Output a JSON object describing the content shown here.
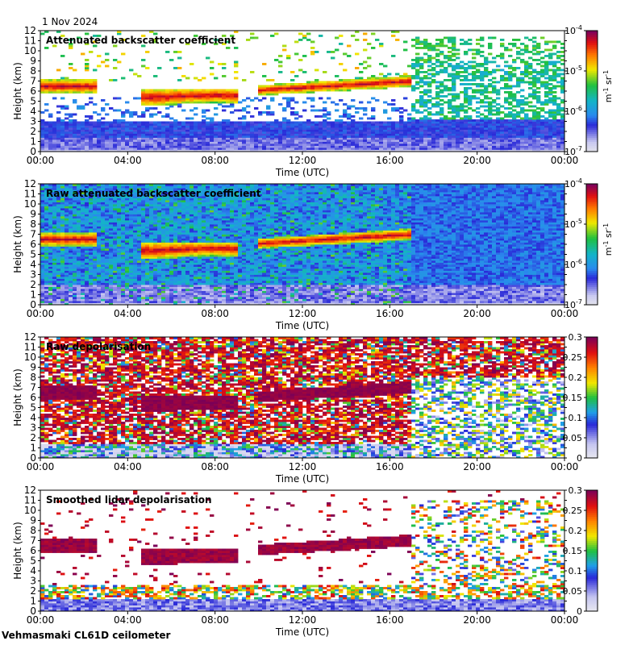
{
  "date": "1 Nov 2024",
  "instrument": "Vehmasmaki CL61D ceilometer",
  "chart_data": [
    {
      "type": "heatmap",
      "title": "Attenuated backscatter coefficient",
      "xlabel": "Time (UTC)",
      "ylabel": "Height (km)",
      "x_ticks": [
        "00:00",
        "04:00",
        "08:00",
        "12:00",
        "16:00",
        "20:00",
        "00:00"
      ],
      "y_ticks": [
        "0",
        "1",
        "2",
        "3",
        "4",
        "5",
        "6",
        "7",
        "8",
        "9",
        "10",
        "11",
        "12"
      ],
      "ylim": [
        0,
        12
      ],
      "colorbar": {
        "scale": "log",
        "range": [
          1e-07,
          0.0001
        ],
        "unit_parts": [
          "m",
          "-1",
          " sr",
          "-1"
        ],
        "ticks": [
          {
            "base": "10",
            "exp": "-4"
          },
          {
            "base": "10",
            "exp": "-5"
          },
          {
            "base": "10",
            "exp": "-6"
          },
          {
            "base": "10",
            "exp": "-7"
          }
        ]
      }
    },
    {
      "type": "heatmap",
      "title": "Raw attenuated backscatter coefficient",
      "xlabel": "Time (UTC)",
      "ylabel": "Height (km)",
      "x_ticks": [
        "00:00",
        "04:00",
        "08:00",
        "12:00",
        "16:00",
        "20:00",
        "00:00"
      ],
      "y_ticks": [
        "0",
        "1",
        "2",
        "3",
        "4",
        "5",
        "6",
        "7",
        "8",
        "9",
        "10",
        "11",
        "12"
      ],
      "ylim": [
        0,
        12
      ],
      "colorbar": {
        "scale": "log",
        "range": [
          1e-07,
          0.0001
        ],
        "unit_parts": [
          "m",
          "-1",
          " sr",
          "-1"
        ],
        "ticks": [
          {
            "base": "10",
            "exp": "-4"
          },
          {
            "base": "10",
            "exp": "-5"
          },
          {
            "base": "10",
            "exp": "-6"
          },
          {
            "base": "10",
            "exp": "-7"
          }
        ]
      }
    },
    {
      "type": "heatmap",
      "title": "Raw depolarisation",
      "xlabel": "Time (UTC)",
      "ylabel": "Height (km)",
      "x_ticks": [
        "00:00",
        "04:00",
        "08:00",
        "12:00",
        "16:00",
        "20:00",
        "00:00"
      ],
      "y_ticks": [
        "0",
        "1",
        "2",
        "3",
        "4",
        "5",
        "6",
        "7",
        "8",
        "9",
        "10",
        "11",
        "12"
      ],
      "ylim": [
        0,
        12
      ],
      "colorbar": {
        "scale": "linear",
        "range": [
          0,
          0.3
        ],
        "ticks": [
          "0.3",
          "0.25",
          "0.2",
          "0.15",
          "0.1",
          "0.05",
          "0"
        ]
      }
    },
    {
      "type": "heatmap",
      "title": "Smoothed lidar depolarisation",
      "xlabel": "Time (UTC)",
      "ylabel": "Height (km)",
      "x_ticks": [
        "00:00",
        "04:00",
        "08:00",
        "12:00",
        "16:00",
        "20:00",
        "00:00"
      ],
      "y_ticks": [
        "0",
        "1",
        "2",
        "3",
        "4",
        "5",
        "6",
        "7",
        "8",
        "9",
        "10",
        "11",
        "12"
      ],
      "ylim": [
        0,
        12
      ],
      "colorbar": {
        "scale": "linear",
        "range": [
          0,
          0.3
        ],
        "ticks": [
          "0.3",
          "0.25",
          "0.2",
          "0.15",
          "0.1",
          "0.05",
          "0"
        ]
      }
    }
  ]
}
